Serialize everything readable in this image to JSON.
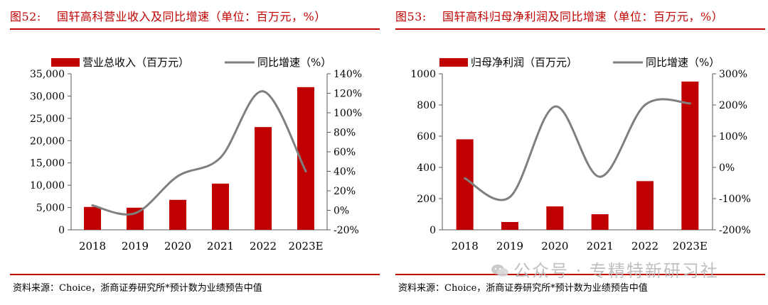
{
  "figures": [
    {
      "number": "图52:",
      "title": "国轩高科营业收入及同比增速（单位：百万元，%）",
      "source": "资料来源：Choice，浙商证券研究所*预计数为业绩预告中值",
      "chart_data": {
        "type": "bar+line",
        "categories": [
          "2018",
          "2019",
          "2020",
          "2021",
          "2022",
          "2023E"
        ],
        "series": [
          {
            "name": "营业总收入（百万元）",
            "kind": "bar",
            "axis": "left",
            "color": "#c00000",
            "values": [
              5130,
              4960,
              6720,
              10360,
              23050,
              32000
            ]
          },
          {
            "name": "同比增速（%）",
            "kind": "line",
            "axis": "right",
            "color": "#7f7f7f",
            "values": [
              5,
              -3,
              35,
              54,
              122,
              40
            ]
          }
        ],
        "left_axis": {
          "min": 0,
          "max": 35000,
          "step": 5000,
          "ticks": [
            "0",
            "5,000",
            "10,000",
            "15,000",
            "20,000",
            "25,000",
            "30,000",
            "35,000"
          ]
        },
        "right_axis": {
          "min": -20,
          "max": 140,
          "step": 20,
          "ticks": [
            "-20%",
            "0%",
            "20%",
            "40%",
            "60%",
            "80%",
            "100%",
            "120%",
            "140%"
          ]
        }
      }
    },
    {
      "number": "图53:",
      "title": "国轩高科归母净利润及同比增速（单位：百万元，%）",
      "source": "资料来源：Choice，浙商证券研究所*预计数为业绩预告中值",
      "chart_data": {
        "type": "bar+line",
        "categories": [
          "2018",
          "2019",
          "2020",
          "2021",
          "2022",
          "2023E"
        ],
        "series": [
          {
            "name": "归母净利润（百万元）",
            "kind": "bar",
            "axis": "left",
            "color": "#c00000",
            "values": [
              580,
              50,
              150,
              100,
              312,
              950
            ]
          },
          {
            "name": "同比增速（%）",
            "kind": "line",
            "axis": "right",
            "color": "#7f7f7f",
            "values": [
              -35,
              -95,
              195,
              -30,
              200,
              205
            ]
          }
        ],
        "left_axis": {
          "min": 0,
          "max": 1000,
          "step": 200,
          "ticks": [
            "0",
            "200",
            "400",
            "600",
            "800",
            "1000"
          ]
        },
        "right_axis": {
          "min": -200,
          "max": 300,
          "step": 100,
          "ticks": [
            "-200%",
            "-100%",
            "0%",
            "100%",
            "200%",
            "300%"
          ]
        }
      }
    }
  ],
  "watermark": "公众号 · 专精特新研习社"
}
